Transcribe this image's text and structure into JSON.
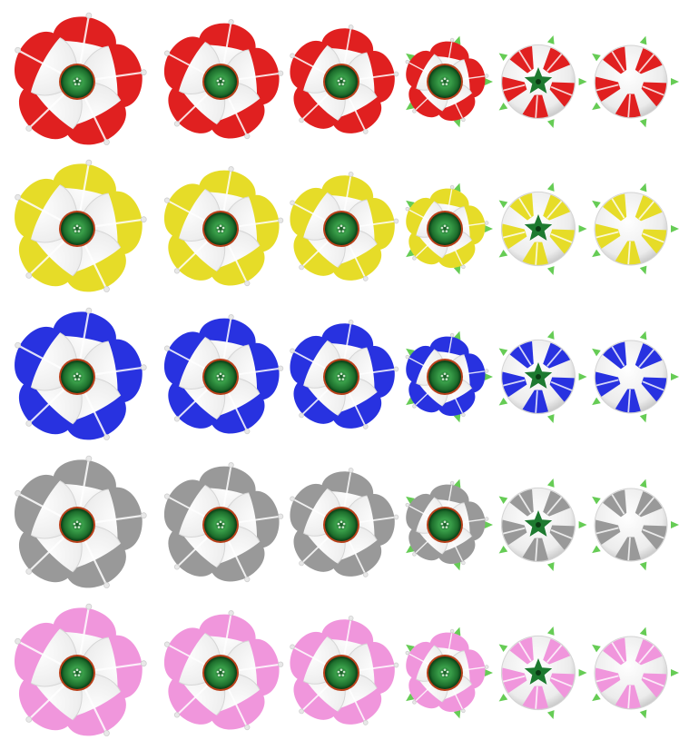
{
  "sprite_sheet": {
    "rows": [
      {
        "color_name": "red",
        "petal_color": "#e02020"
      },
      {
        "color_name": "yellow",
        "petal_color": "#e6dc28"
      },
      {
        "color_name": "blue",
        "petal_color": "#2832e0"
      },
      {
        "color_name": "gray",
        "petal_color": "#999999"
      },
      {
        "color_name": "pink",
        "petal_color": "#f096dc"
      }
    ],
    "stages": [
      {
        "name": "open",
        "openness": 1.0
      },
      {
        "name": "half-open",
        "openness": 0.82
      },
      {
        "name": "closing",
        "openness": 0.62
      },
      {
        "name": "nearly-closed",
        "openness": 0.3
      },
      {
        "name": "bud",
        "openness": 0.1
      },
      {
        "name": "closed",
        "openness": 0.0
      }
    ],
    "colors": {
      "petal_white": "#f4f4f4",
      "petal_shade": "#c8c8c8",
      "center_dark": "#0a3a14",
      "center_light": "#3aa04a",
      "center_ring": "#b8401a",
      "sepal": "#66cc55"
    }
  }
}
